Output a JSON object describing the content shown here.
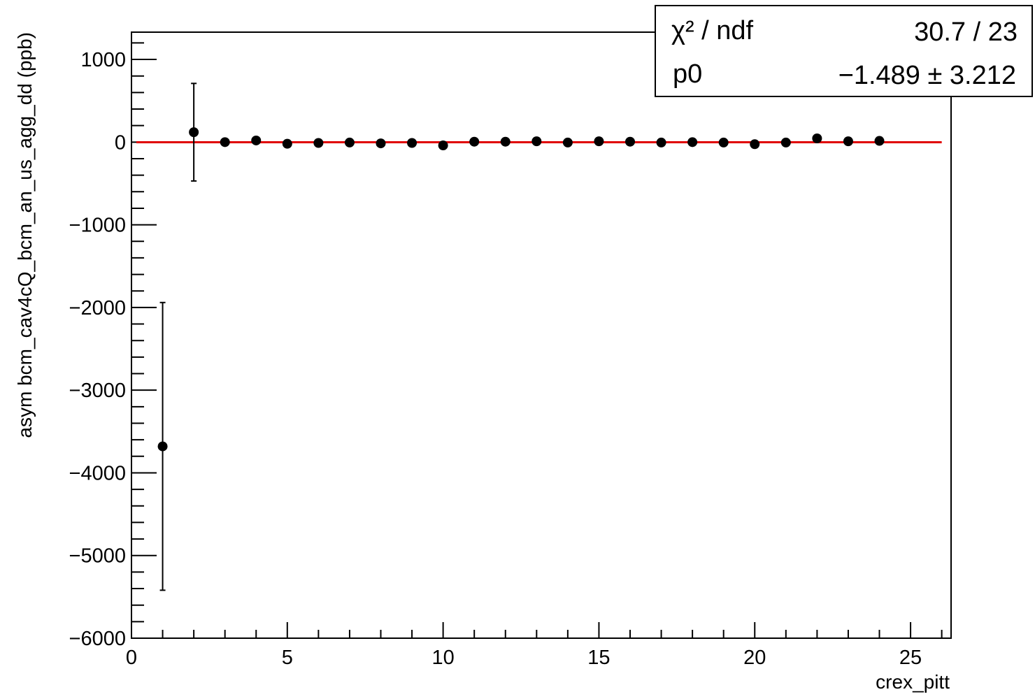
{
  "chart_data": {
    "type": "scatter",
    "xlabel": "crex_pitt",
    "ylabel": "asym bcm_cav4cQ_bcm_an_us_agg_dd (ppb)",
    "xlim": [
      0,
      26.3
    ],
    "ylim": [
      -6000,
      1330
    ],
    "x_ticks": [
      "0",
      "5",
      "10",
      "15",
      "20",
      "25"
    ],
    "y_ticks": [
      "1000",
      "0",
      "−1000",
      "−2000",
      "−3000",
      "−4000",
      "−5000",
      "−6000"
    ],
    "points": [
      {
        "x": 1,
        "y": -3680,
        "err": 1740
      },
      {
        "x": 2,
        "y": 120,
        "err": 590
      },
      {
        "x": 3,
        "y": 0,
        "err": 0
      },
      {
        "x": 4,
        "y": 20,
        "err": 0
      },
      {
        "x": 5,
        "y": -20,
        "err": 0
      },
      {
        "x": 6,
        "y": -10,
        "err": 0
      },
      {
        "x": 7,
        "y": -5,
        "err": 0
      },
      {
        "x": 8,
        "y": -15,
        "err": 0
      },
      {
        "x": 9,
        "y": -10,
        "err": 0
      },
      {
        "x": 10,
        "y": -40,
        "err": 0
      },
      {
        "x": 11,
        "y": 5,
        "err": 0
      },
      {
        "x": 12,
        "y": 5,
        "err": 0
      },
      {
        "x": 13,
        "y": 10,
        "err": 0
      },
      {
        "x": 14,
        "y": -5,
        "err": 0
      },
      {
        "x": 15,
        "y": 10,
        "err": 0
      },
      {
        "x": 16,
        "y": 5,
        "err": 0
      },
      {
        "x": 17,
        "y": -5,
        "err": 0
      },
      {
        "x": 18,
        "y": 0,
        "err": 0
      },
      {
        "x": 19,
        "y": -5,
        "err": 0
      },
      {
        "x": 20,
        "y": -25,
        "err": 0
      },
      {
        "x": 21,
        "y": -5,
        "err": 0
      },
      {
        "x": 22,
        "y": 45,
        "err": 0
      },
      {
        "x": 23,
        "y": 10,
        "err": 0
      },
      {
        "x": 24,
        "y": 15,
        "err": 0
      }
    ],
    "fit": {
      "p0": -1.489,
      "x_range": [
        0,
        26
      ],
      "color": "#e00000"
    },
    "marker_color": "#000000"
  },
  "stats_box": {
    "chi2_label": "χ² / ndf",
    "chi2_value": "30.7 / 23",
    "p0_label": "p0",
    "p0_value": "−1.489 ± 3.212"
  }
}
